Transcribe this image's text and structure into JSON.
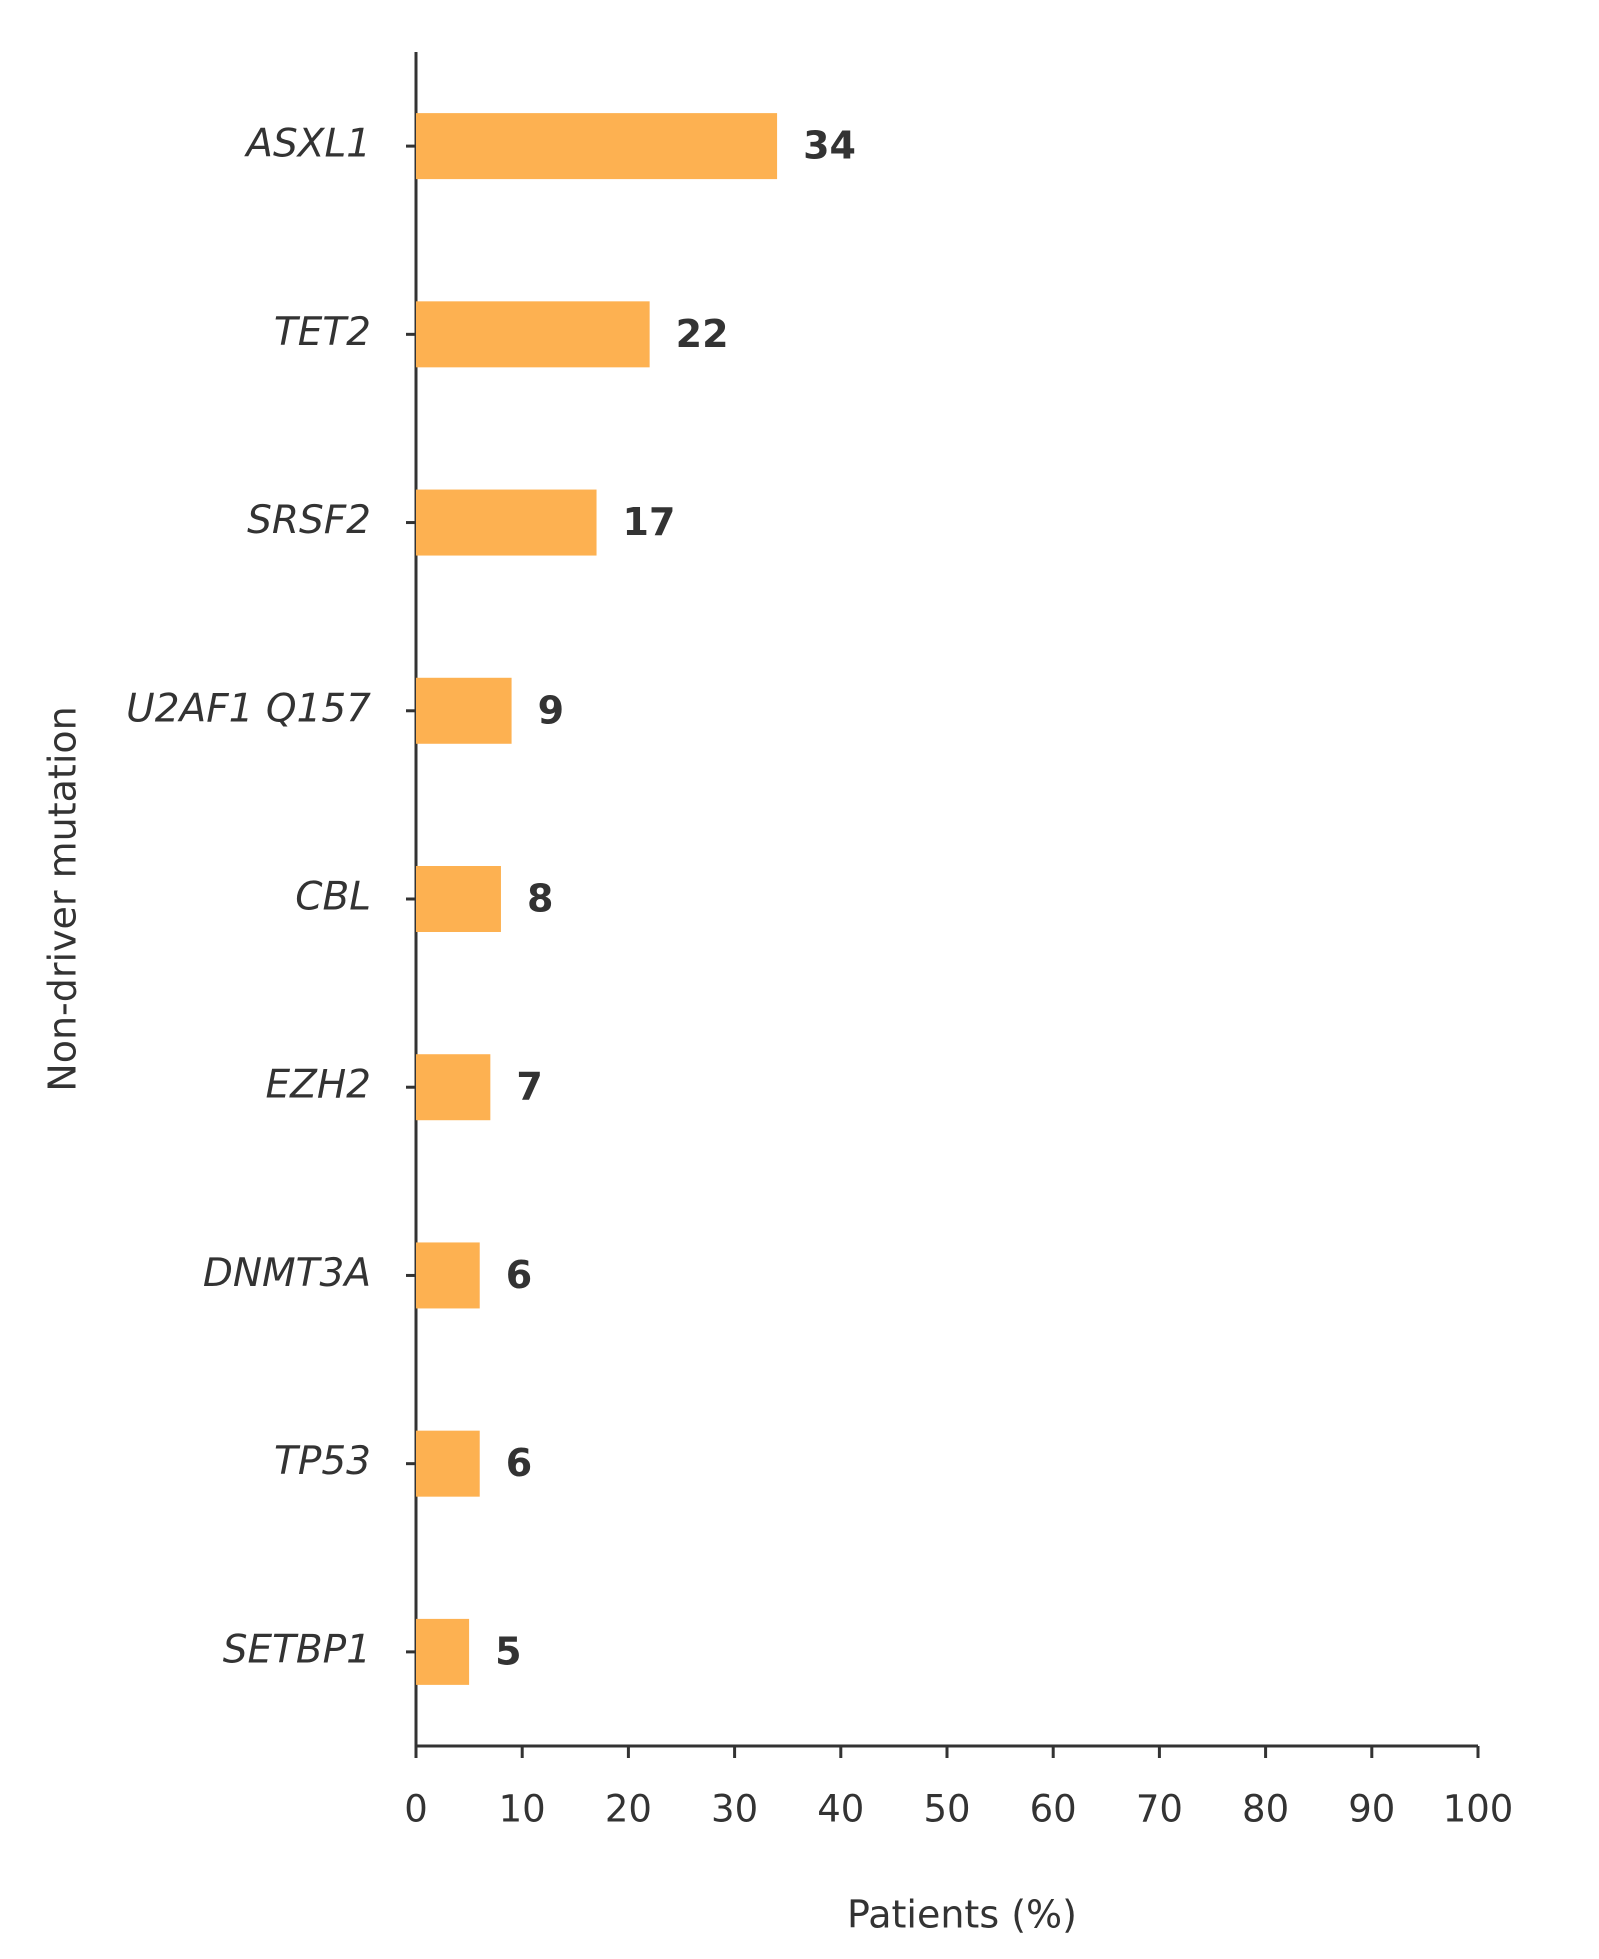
{
  "chart_data": {
    "type": "bar",
    "orientation": "horizontal",
    "categories": [
      "ASXL1",
      "TET2",
      "SRSF2",
      "U2AF1 Q157",
      "CBL",
      "EZH2",
      "DNMT3A",
      "TP53",
      "SETBP1"
    ],
    "values": [
      34,
      22,
      17,
      9,
      8,
      7,
      6,
      6,
      5
    ],
    "color": "#fdb151",
    "xlabel": "Patients (%)",
    "ylabel": "Non-driver mutation",
    "xlim": [
      0,
      100
    ],
    "xticks": [
      0,
      10,
      20,
      30,
      40,
      50,
      60,
      70,
      80,
      90,
      100
    ],
    "grid": false
  }
}
